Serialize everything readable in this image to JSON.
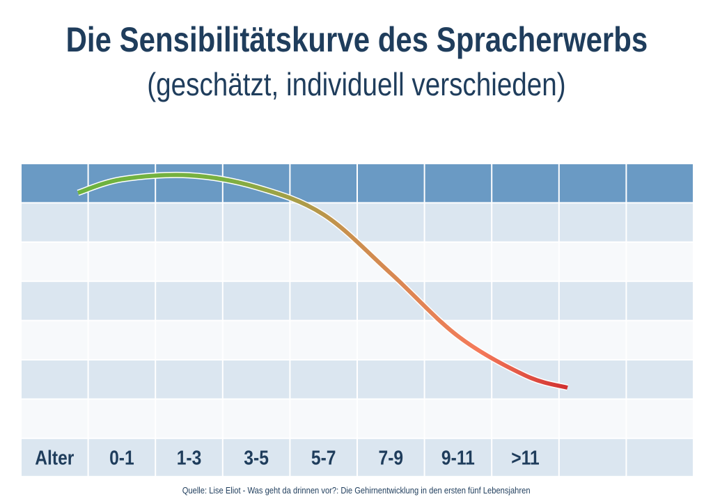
{
  "title": "Die Sensibilitätskurve des Spracherwerbs",
  "subtitle": "(geschätzt, individuell verschieden)",
  "source": "Quelle: Lise Eliot - Was geht da drinnen vor?: Die Gehirnentwicklung in den ersten fünf Lebensjahren",
  "colors": {
    "header_row": "#6a9ac4",
    "band_dark": "#dbe6f0",
    "band_light": "#f7f9fb",
    "text": "#1f3d5c",
    "curve_start": "#6cb33f",
    "curve_mid": "#f47a5a",
    "curve_end": "#d03030"
  },
  "chart_data": {
    "type": "line",
    "title": "Die Sensibilitätskurve des Spracherwerbs",
    "subtitle": "(geschätzt, individuell verschieden)",
    "row_label": "Alter",
    "categories": [
      "0-1",
      "1-3",
      "3-5",
      "5-7",
      "7-9",
      "9-11",
      ">11"
    ],
    "values": [
      6.6,
      6.7,
      6.4,
      5.7,
      4.2,
      2.6,
      1.6
    ],
    "ylim": [
      0,
      7
    ],
    "grid": true,
    "legend": "none"
  }
}
